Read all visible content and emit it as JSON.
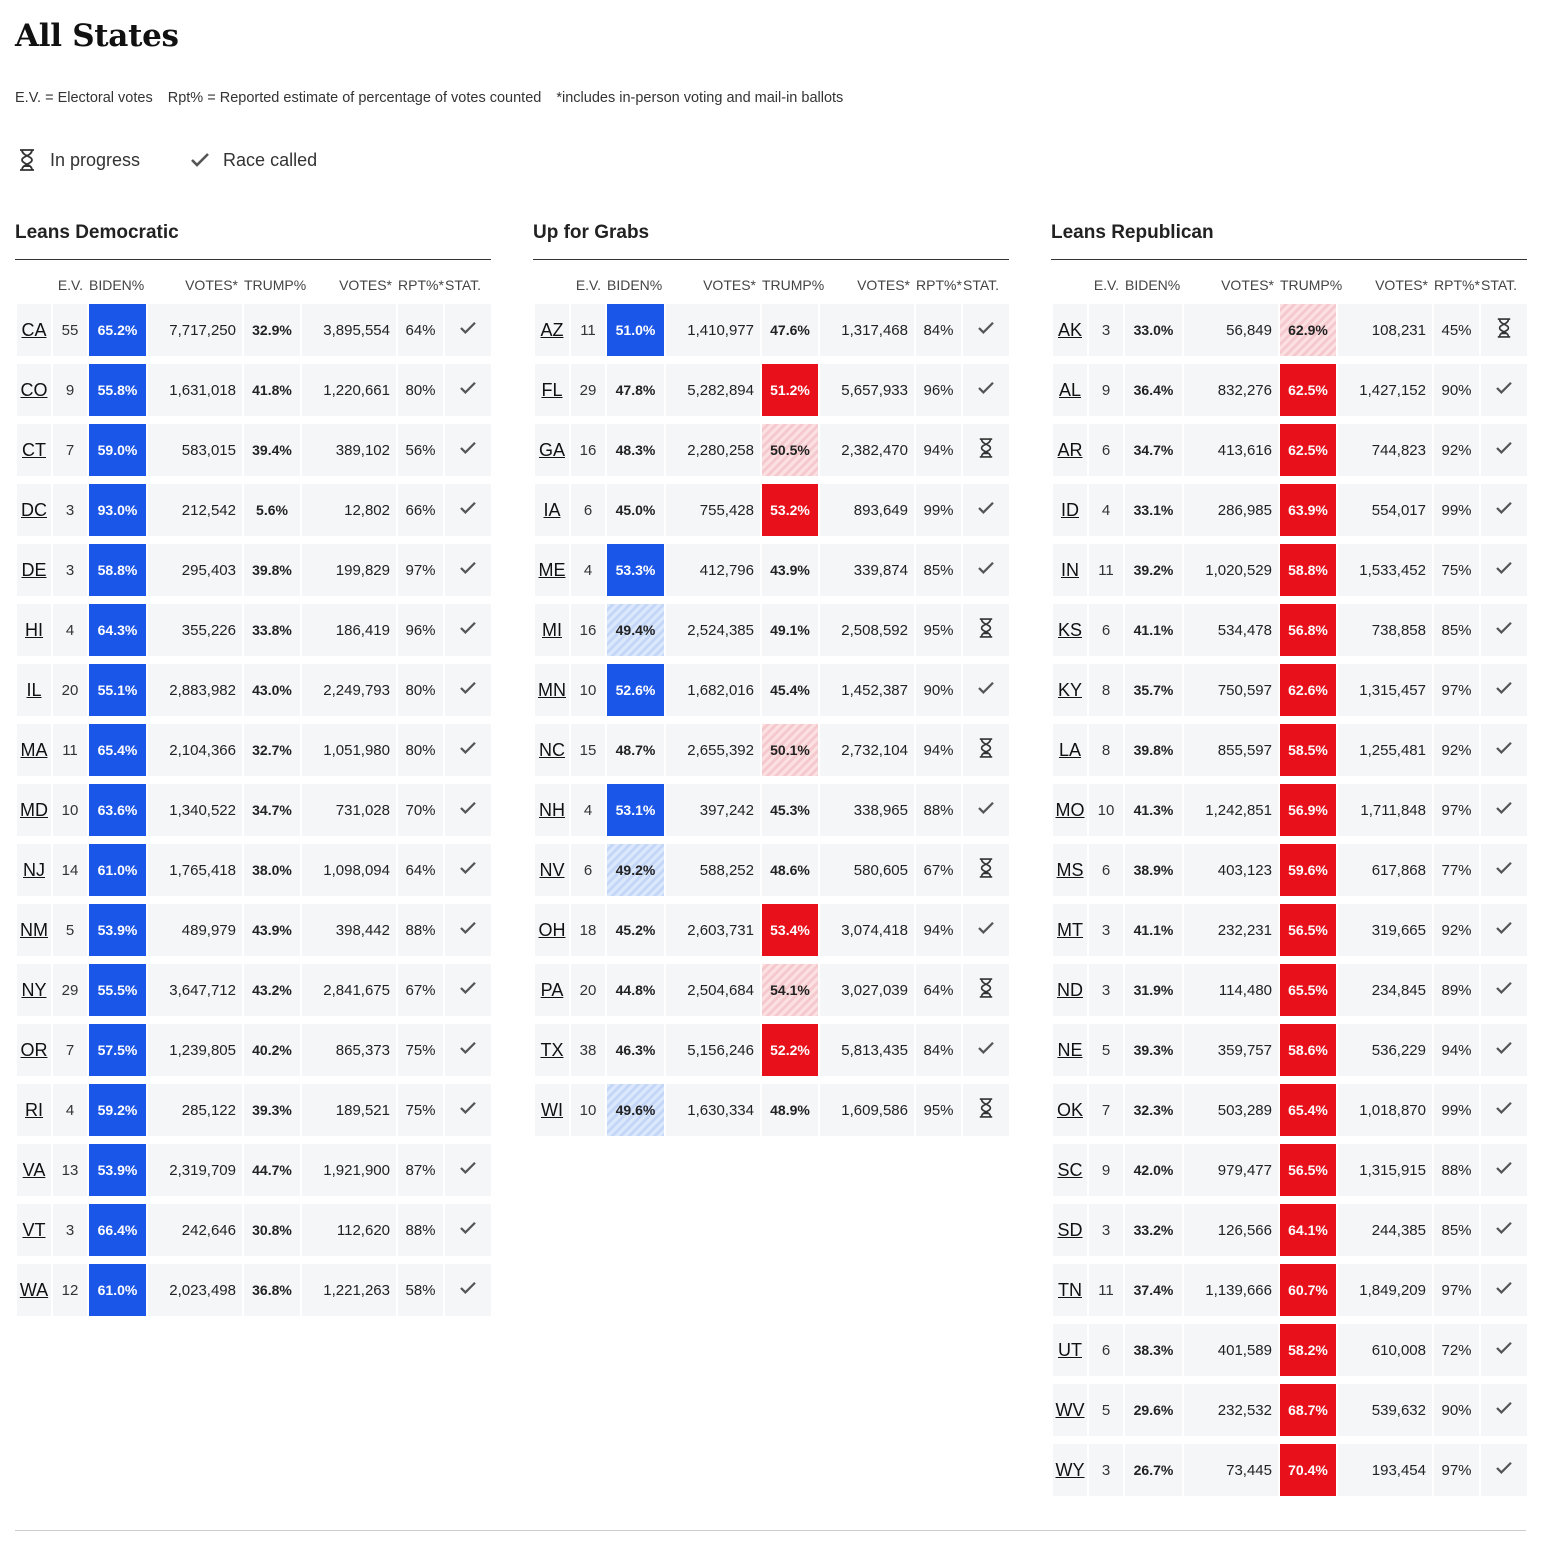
{
  "title": "All States",
  "notes": [
    "E.V. = Electoral votes",
    "Rpt% = Reported estimate of percentage of votes counted",
    "*includes in-person voting and mail-in ballots"
  ],
  "legend": {
    "in_progress": "In progress",
    "race_called": "Race called"
  },
  "columns_header": {
    "ev": "E.V.",
    "biden": "BIDEN%",
    "votes_b": "VOTES*",
    "trump": "TRUMP%",
    "votes_t": "VOTES*",
    "rpt": "RPT%*",
    "stat": "STAT."
  },
  "colors": {
    "dem": "#1a56e8",
    "rep": "#e8101a",
    "dem_lean": "#c4d6f7",
    "rep_lean": "#f4c8cc"
  },
  "groups": [
    {
      "title": "Leans Democratic",
      "rows": [
        {
          "state": "CA",
          "ev": "55",
          "biden": "65.2%",
          "votes_b": "7,717,250",
          "trump": "32.9%",
          "votes_t": "3,895,554",
          "rpt": "64%",
          "stat": "called",
          "shade": "dem"
        },
        {
          "state": "CO",
          "ev": "9",
          "biden": "55.8%",
          "votes_b": "1,631,018",
          "trump": "41.8%",
          "votes_t": "1,220,661",
          "rpt": "80%",
          "stat": "called",
          "shade": "dem"
        },
        {
          "state": "CT",
          "ev": "7",
          "biden": "59.0%",
          "votes_b": "583,015",
          "trump": "39.4%",
          "votes_t": "389,102",
          "rpt": "56%",
          "stat": "called",
          "shade": "dem"
        },
        {
          "state": "DC",
          "ev": "3",
          "biden": "93.0%",
          "votes_b": "212,542",
          "trump": "5.6%",
          "votes_t": "12,802",
          "rpt": "66%",
          "stat": "called",
          "shade": "dem"
        },
        {
          "state": "DE",
          "ev": "3",
          "biden": "58.8%",
          "votes_b": "295,403",
          "trump": "39.8%",
          "votes_t": "199,829",
          "rpt": "97%",
          "stat": "called",
          "shade": "dem"
        },
        {
          "state": "HI",
          "ev": "4",
          "biden": "64.3%",
          "votes_b": "355,226",
          "trump": "33.8%",
          "votes_t": "186,419",
          "rpt": "96%",
          "stat": "called",
          "shade": "dem"
        },
        {
          "state": "IL",
          "ev": "20",
          "biden": "55.1%",
          "votes_b": "2,883,982",
          "trump": "43.0%",
          "votes_t": "2,249,793",
          "rpt": "80%",
          "stat": "called",
          "shade": "dem"
        },
        {
          "state": "MA",
          "ev": "11",
          "biden": "65.4%",
          "votes_b": "2,104,366",
          "trump": "32.7%",
          "votes_t": "1,051,980",
          "rpt": "80%",
          "stat": "called",
          "shade": "dem"
        },
        {
          "state": "MD",
          "ev": "10",
          "biden": "63.6%",
          "votes_b": "1,340,522",
          "trump": "34.7%",
          "votes_t": "731,028",
          "rpt": "70%",
          "stat": "called",
          "shade": "dem"
        },
        {
          "state": "NJ",
          "ev": "14",
          "biden": "61.0%",
          "votes_b": "1,765,418",
          "trump": "38.0%",
          "votes_t": "1,098,094",
          "rpt": "64%",
          "stat": "called",
          "shade": "dem"
        },
        {
          "state": "NM",
          "ev": "5",
          "biden": "53.9%",
          "votes_b": "489,979",
          "trump": "43.9%",
          "votes_t": "398,442",
          "rpt": "88%",
          "stat": "called",
          "shade": "dem"
        },
        {
          "state": "NY",
          "ev": "29",
          "biden": "55.5%",
          "votes_b": "3,647,712",
          "trump": "43.2%",
          "votes_t": "2,841,675",
          "rpt": "67%",
          "stat": "called",
          "shade": "dem"
        },
        {
          "state": "OR",
          "ev": "7",
          "biden": "57.5%",
          "votes_b": "1,239,805",
          "trump": "40.2%",
          "votes_t": "865,373",
          "rpt": "75%",
          "stat": "called",
          "shade": "dem"
        },
        {
          "state": "RI",
          "ev": "4",
          "biden": "59.2%",
          "votes_b": "285,122",
          "trump": "39.3%",
          "votes_t": "189,521",
          "rpt": "75%",
          "stat": "called",
          "shade": "dem"
        },
        {
          "state": "VA",
          "ev": "13",
          "biden": "53.9%",
          "votes_b": "2,319,709",
          "trump": "44.7%",
          "votes_t": "1,921,900",
          "rpt": "87%",
          "stat": "called",
          "shade": "dem"
        },
        {
          "state": "VT",
          "ev": "3",
          "biden": "66.4%",
          "votes_b": "242,646",
          "trump": "30.8%",
          "votes_t": "112,620",
          "rpt": "88%",
          "stat": "called",
          "shade": "dem"
        },
        {
          "state": "WA",
          "ev": "12",
          "biden": "61.0%",
          "votes_b": "2,023,498",
          "trump": "36.8%",
          "votes_t": "1,221,263",
          "rpt": "58%",
          "stat": "called",
          "shade": "dem"
        }
      ]
    },
    {
      "title": "Up for Grabs",
      "rows": [
        {
          "state": "AZ",
          "ev": "11",
          "biden": "51.0%",
          "votes_b": "1,410,977",
          "trump": "47.6%",
          "votes_t": "1,317,468",
          "rpt": "84%",
          "stat": "called",
          "shade": "dem"
        },
        {
          "state": "FL",
          "ev": "29",
          "biden": "47.8%",
          "votes_b": "5,282,894",
          "trump": "51.2%",
          "votes_t": "5,657,933",
          "rpt": "96%",
          "stat": "called",
          "shade": "rep"
        },
        {
          "state": "GA",
          "ev": "16",
          "biden": "48.3%",
          "votes_b": "2,280,258",
          "trump": "50.5%",
          "votes_t": "2,382,470",
          "rpt": "94%",
          "stat": "progress",
          "shade": "rep-lean"
        },
        {
          "state": "IA",
          "ev": "6",
          "biden": "45.0%",
          "votes_b": "755,428",
          "trump": "53.2%",
          "votes_t": "893,649",
          "rpt": "99%",
          "stat": "called",
          "shade": "rep"
        },
        {
          "state": "ME",
          "ev": "4",
          "biden": "53.3%",
          "votes_b": "412,796",
          "trump": "43.9%",
          "votes_t": "339,874",
          "rpt": "85%",
          "stat": "called",
          "shade": "dem"
        },
        {
          "state": "MI",
          "ev": "16",
          "biden": "49.4%",
          "votes_b": "2,524,385",
          "trump": "49.1%",
          "votes_t": "2,508,592",
          "rpt": "95%",
          "stat": "progress",
          "shade": "dem-lean"
        },
        {
          "state": "MN",
          "ev": "10",
          "biden": "52.6%",
          "votes_b": "1,682,016",
          "trump": "45.4%",
          "votes_t": "1,452,387",
          "rpt": "90%",
          "stat": "called",
          "shade": "dem"
        },
        {
          "state": "NC",
          "ev": "15",
          "biden": "48.7%",
          "votes_b": "2,655,392",
          "trump": "50.1%",
          "votes_t": "2,732,104",
          "rpt": "94%",
          "stat": "progress",
          "shade": "rep-lean"
        },
        {
          "state": "NH",
          "ev": "4",
          "biden": "53.1%",
          "votes_b": "397,242",
          "trump": "45.3%",
          "votes_t": "338,965",
          "rpt": "88%",
          "stat": "called",
          "shade": "dem"
        },
        {
          "state": "NV",
          "ev": "6",
          "biden": "49.2%",
          "votes_b": "588,252",
          "trump": "48.6%",
          "votes_t": "580,605",
          "rpt": "67%",
          "stat": "progress",
          "shade": "dem-lean"
        },
        {
          "state": "OH",
          "ev": "18",
          "biden": "45.2%",
          "votes_b": "2,603,731",
          "trump": "53.4%",
          "votes_t": "3,074,418",
          "rpt": "94%",
          "stat": "called",
          "shade": "rep"
        },
        {
          "state": "PA",
          "ev": "20",
          "biden": "44.8%",
          "votes_b": "2,504,684",
          "trump": "54.1%",
          "votes_t": "3,027,039",
          "rpt": "64%",
          "stat": "progress",
          "shade": "rep-lean"
        },
        {
          "state": "TX",
          "ev": "38",
          "biden": "46.3%",
          "votes_b": "5,156,246",
          "trump": "52.2%",
          "votes_t": "5,813,435",
          "rpt": "84%",
          "stat": "called",
          "shade": "rep"
        },
        {
          "state": "WI",
          "ev": "10",
          "biden": "49.6%",
          "votes_b": "1,630,334",
          "trump": "48.9%",
          "votes_t": "1,609,586",
          "rpt": "95%",
          "stat": "progress",
          "shade": "dem-lean"
        }
      ]
    },
    {
      "title": "Leans Republican",
      "rows": [
        {
          "state": "AK",
          "ev": "3",
          "biden": "33.0%",
          "votes_b": "56,849",
          "trump": "62.9%",
          "votes_t": "108,231",
          "rpt": "45%",
          "stat": "progress",
          "shade": "rep-lean"
        },
        {
          "state": "AL",
          "ev": "9",
          "biden": "36.4%",
          "votes_b": "832,276",
          "trump": "62.5%",
          "votes_t": "1,427,152",
          "rpt": "90%",
          "stat": "called",
          "shade": "rep"
        },
        {
          "state": "AR",
          "ev": "6",
          "biden": "34.7%",
          "votes_b": "413,616",
          "trump": "62.5%",
          "votes_t": "744,823",
          "rpt": "92%",
          "stat": "called",
          "shade": "rep"
        },
        {
          "state": "ID",
          "ev": "4",
          "biden": "33.1%",
          "votes_b": "286,985",
          "trump": "63.9%",
          "votes_t": "554,017",
          "rpt": "99%",
          "stat": "called",
          "shade": "rep"
        },
        {
          "state": "IN",
          "ev": "11",
          "biden": "39.2%",
          "votes_b": "1,020,529",
          "trump": "58.8%",
          "votes_t": "1,533,452",
          "rpt": "75%",
          "stat": "called",
          "shade": "rep"
        },
        {
          "state": "KS",
          "ev": "6",
          "biden": "41.1%",
          "votes_b": "534,478",
          "trump": "56.8%",
          "votes_t": "738,858",
          "rpt": "85%",
          "stat": "called",
          "shade": "rep"
        },
        {
          "state": "KY",
          "ev": "8",
          "biden": "35.7%",
          "votes_b": "750,597",
          "trump": "62.6%",
          "votes_t": "1,315,457",
          "rpt": "97%",
          "stat": "called",
          "shade": "rep"
        },
        {
          "state": "LA",
          "ev": "8",
          "biden": "39.8%",
          "votes_b": "855,597",
          "trump": "58.5%",
          "votes_t": "1,255,481",
          "rpt": "92%",
          "stat": "called",
          "shade": "rep"
        },
        {
          "state": "MO",
          "ev": "10",
          "biden": "41.3%",
          "votes_b": "1,242,851",
          "trump": "56.9%",
          "votes_t": "1,711,848",
          "rpt": "97%",
          "stat": "called",
          "shade": "rep"
        },
        {
          "state": "MS",
          "ev": "6",
          "biden": "38.9%",
          "votes_b": "403,123",
          "trump": "59.6%",
          "votes_t": "617,868",
          "rpt": "77%",
          "stat": "called",
          "shade": "rep"
        },
        {
          "state": "MT",
          "ev": "3",
          "biden": "41.1%",
          "votes_b": "232,231",
          "trump": "56.5%",
          "votes_t": "319,665",
          "rpt": "92%",
          "stat": "called",
          "shade": "rep"
        },
        {
          "state": "ND",
          "ev": "3",
          "biden": "31.9%",
          "votes_b": "114,480",
          "trump": "65.5%",
          "votes_t": "234,845",
          "rpt": "89%",
          "stat": "called",
          "shade": "rep"
        },
        {
          "state": "NE",
          "ev": "5",
          "biden": "39.3%",
          "votes_b": "359,757",
          "trump": "58.6%",
          "votes_t": "536,229",
          "rpt": "94%",
          "stat": "called",
          "shade": "rep"
        },
        {
          "state": "OK",
          "ev": "7",
          "biden": "32.3%",
          "votes_b": "503,289",
          "trump": "65.4%",
          "votes_t": "1,018,870",
          "rpt": "99%",
          "stat": "called",
          "shade": "rep"
        },
        {
          "state": "SC",
          "ev": "9",
          "biden": "42.0%",
          "votes_b": "979,477",
          "trump": "56.5%",
          "votes_t": "1,315,915",
          "rpt": "88%",
          "stat": "called",
          "shade": "rep"
        },
        {
          "state": "SD",
          "ev": "3",
          "biden": "33.2%",
          "votes_b": "126,566",
          "trump": "64.1%",
          "votes_t": "244,385",
          "rpt": "85%",
          "stat": "called",
          "shade": "rep"
        },
        {
          "state": "TN",
          "ev": "11",
          "biden": "37.4%",
          "votes_b": "1,139,666",
          "trump": "60.7%",
          "votes_t": "1,849,209",
          "rpt": "97%",
          "stat": "called",
          "shade": "rep"
        },
        {
          "state": "UT",
          "ev": "6",
          "biden": "38.3%",
          "votes_b": "401,589",
          "trump": "58.2%",
          "votes_t": "610,008",
          "rpt": "72%",
          "stat": "called",
          "shade": "rep"
        },
        {
          "state": "WV",
          "ev": "5",
          "biden": "29.6%",
          "votes_b": "232,532",
          "trump": "68.7%",
          "votes_t": "539,632",
          "rpt": "90%",
          "stat": "called",
          "shade": "rep"
        },
        {
          "state": "WY",
          "ev": "3",
          "biden": "26.7%",
          "votes_b": "73,445",
          "trump": "70.4%",
          "votes_t": "193,454",
          "rpt": "97%",
          "stat": "called",
          "shade": "rep"
        }
      ]
    }
  ]
}
